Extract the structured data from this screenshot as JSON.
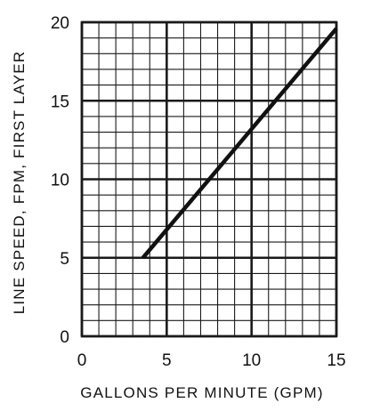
{
  "chart_data": {
    "type": "line",
    "title": "",
    "xlabel": "GALLONS PER MINUTE (GPM)",
    "ylabel": "LINE SPEED, FPM, FIRST LAYER",
    "xlim": [
      0,
      15
    ],
    "ylim": [
      0,
      20
    ],
    "x_ticks": [
      0,
      5,
      10,
      15
    ],
    "y_ticks": [
      0,
      5,
      10,
      15,
      20
    ],
    "x_tick_labels": [
      "0",
      "5",
      "10",
      "15"
    ],
    "y_tick_labels": [
      "0",
      "5",
      "10",
      "15",
      "20"
    ],
    "grid": true,
    "grid_minor_x_step": 1,
    "grid_minor_y_step": 1,
    "grid_major_x_step": 5,
    "grid_major_y_step": 5,
    "series": [
      {
        "x": [
          3.6,
          15.0
        ],
        "y": [
          5.0,
          19.6
        ]
      }
    ],
    "colors": {
      "line": "#111111",
      "grid": "#1a1a1a",
      "text": "#111111"
    }
  }
}
